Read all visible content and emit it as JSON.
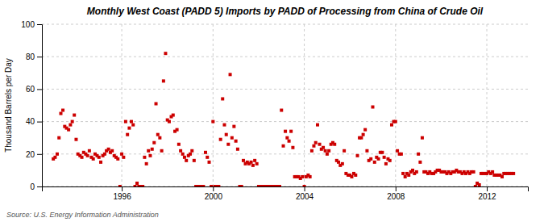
{
  "chart_data": {
    "type": "scatter",
    "title": "Monthly West Coast (PADD 5) Imports by PADD of Processing from China of Crude Oil",
    "ylabel": "Thousand Barrels per Day",
    "annotations": [
      "Source: U.S. Energy Information Administration"
    ],
    "color": "#cc0000",
    "marker": "square",
    "grid": true,
    "xlim": [
      1992.5,
      2013.8
    ],
    "xticks": [
      1996,
      2000,
      2004,
      2008,
      2012
    ],
    "ylim": [
      0,
      100
    ],
    "yticks": [
      0,
      20,
      40,
      60,
      80,
      100
    ],
    "x": [
      1993.0,
      1993.08,
      1993.17,
      1993.25,
      1993.33,
      1993.42,
      1993.5,
      1993.58,
      1993.67,
      1993.75,
      1993.83,
      1993.92,
      1994.0,
      1994.08,
      1994.17,
      1994.25,
      1994.33,
      1994.42,
      1994.5,
      1994.58,
      1994.67,
      1994.75,
      1994.83,
      1994.92,
      1995.0,
      1995.08,
      1995.17,
      1995.25,
      1995.33,
      1995.42,
      1995.5,
      1995.58,
      1995.67,
      1995.75,
      1995.83,
      1995.92,
      1996.0,
      1996.08,
      1996.17,
      1996.25,
      1996.33,
      1996.42,
      1996.5,
      1996.58,
      1996.67,
      1996.75,
      1996.83,
      1996.92,
      1997.0,
      1997.08,
      1997.17,
      1997.25,
      1997.33,
      1997.42,
      1997.5,
      1997.58,
      1997.67,
      1997.75,
      1997.83,
      1997.92,
      1998.0,
      1998.08,
      1998.17,
      1998.25,
      1998.33,
      1998.42,
      1998.5,
      1998.58,
      1998.67,
      1998.75,
      1998.83,
      1998.92,
      1999.0,
      1999.08,
      1999.17,
      1999.25,
      1999.33,
      1999.42,
      1999.5,
      1999.58,
      1999.67,
      1999.75,
      1999.83,
      1999.92,
      2000.0,
      2000.08,
      2000.17,
      2000.25,
      2000.33,
      2000.42,
      2000.5,
      2000.58,
      2000.67,
      2000.75,
      2000.83,
      2000.92,
      2001.0,
      2001.08,
      2001.17,
      2001.25,
      2001.33,
      2001.42,
      2001.5,
      2001.58,
      2001.67,
      2001.75,
      2001.83,
      2001.92,
      2002.0,
      2002.08,
      2002.17,
      2002.25,
      2002.33,
      2002.42,
      2002.5,
      2002.58,
      2002.67,
      2002.75,
      2002.83,
      2002.92,
      2003.0,
      2003.08,
      2003.17,
      2003.25,
      2003.33,
      2003.42,
      2003.5,
      2003.58,
      2003.67,
      2003.75,
      2003.83,
      2003.92,
      2004.0,
      2004.08,
      2004.17,
      2004.25,
      2004.33,
      2004.42,
      2004.5,
      2004.58,
      2004.67,
      2004.75,
      2004.83,
      2004.92,
      2005.0,
      2005.08,
      2005.17,
      2005.25,
      2005.33,
      2005.42,
      2005.5,
      2005.58,
      2005.67,
      2005.75,
      2005.83,
      2005.92,
      2006.0,
      2006.08,
      2006.17,
      2006.25,
      2006.33,
      2006.42,
      2006.5,
      2006.58,
      2006.67,
      2006.75,
      2006.83,
      2006.92,
      2007.0,
      2007.08,
      2007.17,
      2007.25,
      2007.33,
      2007.42,
      2007.5,
      2007.58,
      2007.67,
      2007.75,
      2007.83,
      2007.92,
      2008.0,
      2008.08,
      2008.17,
      2008.25,
      2008.33,
      2008.42,
      2008.5,
      2008.58,
      2008.67,
      2008.75,
      2008.83,
      2008.92,
      2009.0,
      2009.08,
      2009.17,
      2009.25,
      2009.33,
      2009.42,
      2009.5,
      2009.58,
      2009.67,
      2009.75,
      2009.83,
      2009.92,
      2010.0,
      2010.08,
      2010.17,
      2010.25,
      2010.33,
      2010.42,
      2010.5,
      2010.58,
      2010.67,
      2010.75,
      2010.83,
      2010.92,
      2011.0,
      2011.08,
      2011.17,
      2011.25,
      2011.33,
      2011.42,
      2011.5,
      2011.58,
      2011.67,
      2011.75,
      2011.83,
      2011.92,
      2012.0,
      2012.08,
      2012.17,
      2012.25,
      2012.33,
      2012.42,
      2012.5,
      2012.58,
      2012.67,
      2012.75,
      2012.83,
      2012.92,
      2013.0,
      2013.08,
      2013.17
    ],
    "values": [
      17,
      18,
      20,
      30,
      45,
      47,
      37,
      36,
      35,
      38,
      40,
      44,
      29,
      20,
      19,
      18,
      21,
      20,
      19,
      22,
      18,
      17,
      20,
      19,
      18,
      15,
      19,
      20,
      22,
      23,
      21,
      22,
      19,
      18,
      17,
      0,
      20,
      18,
      40,
      32,
      36,
      40,
      38,
      0,
      2,
      0,
      0,
      0,
      18,
      14,
      22,
      19,
      23,
      27,
      51,
      32,
      30,
      22,
      65,
      82,
      41,
      40,
      43,
      44,
      34,
      35,
      26,
      22,
      20,
      18,
      16,
      19,
      20,
      22,
      16,
      0,
      0,
      0,
      0,
      0,
      21,
      18,
      15,
      0,
      40,
      0,
      0,
      0,
      29,
      54,
      38,
      32,
      26,
      69,
      30,
      37,
      28,
      23,
      0,
      0,
      16,
      14,
      15,
      14,
      15,
      13,
      16,
      14,
      0,
      0,
      0,
      0,
      0,
      0,
      0,
      0,
      0,
      0,
      0,
      0,
      47,
      25,
      34,
      30,
      28,
      34,
      24,
      6,
      6,
      6,
      5,
      6,
      0,
      6,
      7,
      6,
      22,
      25,
      27,
      38,
      26,
      23,
      24,
      22,
      20,
      22,
      26,
      27,
      26,
      16,
      15,
      13,
      14,
      22,
      8,
      7,
      7,
      6,
      8,
      7,
      19,
      30,
      30,
      32,
      35,
      22,
      16,
      17,
      49,
      15,
      18,
      17,
      21,
      21,
      18,
      14,
      17,
      16,
      38,
      40,
      40,
      22,
      20,
      20,
      8,
      6,
      8,
      7,
      9,
      10,
      8,
      9,
      20,
      15,
      30,
      9,
      9,
      8,
      9,
      8,
      8,
      9,
      10,
      10,
      9,
      9,
      9,
      8,
      9,
      8,
      9,
      9,
      10,
      9,
      9,
      8,
      9,
      8,
      9,
      8,
      9,
      9,
      0,
      2,
      1,
      8,
      8,
      8,
      8,
      9,
      8,
      9,
      7,
      7,
      7,
      7,
      6,
      8,
      8,
      8,
      8,
      8,
      8
    ]
  }
}
